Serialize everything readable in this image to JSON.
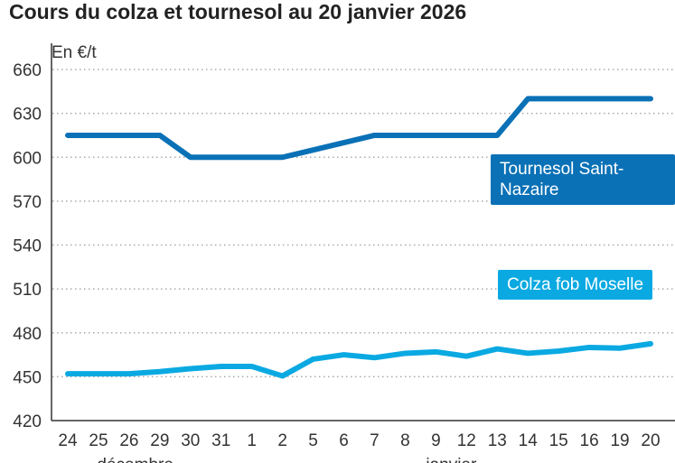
{
  "chart_data": {
    "type": "line",
    "title": "Cours du colza et tournesol au 20 janvier 2026",
    "ylabel": "En €/t",
    "ylim": [
      420,
      660
    ],
    "yticks": [
      420,
      450,
      480,
      510,
      540,
      570,
      600,
      630,
      660
    ],
    "grid": true,
    "categories": [
      "24",
      "25",
      "26",
      "29",
      "30",
      "31",
      "1",
      "2",
      "5",
      "6",
      "7",
      "8",
      "9",
      "12",
      "13",
      "14",
      "15",
      "16",
      "19",
      "20"
    ],
    "month_labels": [
      "décembre",
      "janvier"
    ],
    "series": [
      {
        "name": "Tournesol Saint-Nazaire",
        "color": "#0a71b6",
        "values": [
          615,
          615,
          615,
          615,
          600,
          600,
          600,
          600,
          605,
          610,
          615,
          615,
          615,
          615,
          615,
          640,
          640,
          640,
          640,
          640
        ]
      },
      {
        "name": "Colza fob Moselle",
        "color": "#0aa9e2",
        "values": [
          452,
          452,
          452,
          453.5,
          455.5,
          457,
          457,
          450.5,
          462,
          465,
          463,
          466,
          467,
          464,
          469,
          466,
          467.5,
          470,
          469.5,
          472.5
        ]
      }
    ]
  }
}
